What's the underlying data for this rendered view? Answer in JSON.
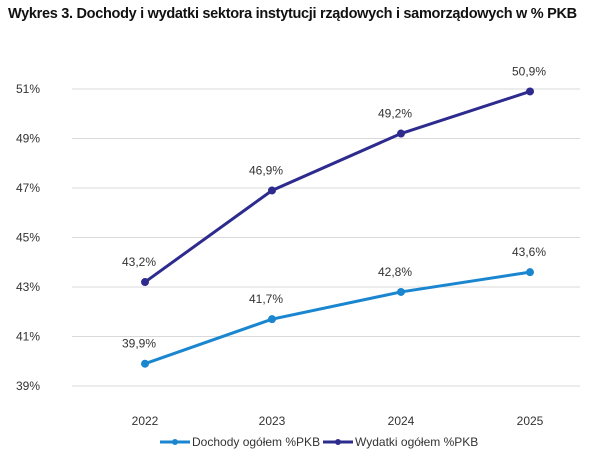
{
  "chart_data": {
    "type": "line",
    "title": "Wykres 3.  Dochody i wydatki sektora instytucji rządowych i samorządowych w % PKB",
    "categories": [
      "2022",
      "2023",
      "2024",
      "2025"
    ],
    "ylim": [
      39,
      51
    ],
    "yticks": [
      "39%",
      "41%",
      "43%",
      "45%",
      "47%",
      "49%",
      "51%"
    ],
    "ytick_values": [
      39,
      41,
      43,
      45,
      47,
      49,
      51
    ],
    "grid": true,
    "legend": "bottom",
    "series": [
      {
        "name": "Dochody ogółem %PKB",
        "color": "#1a86d0",
        "values": [
          39.9,
          41.7,
          42.8,
          43.6
        ],
        "labels": [
          "39,9%",
          "41,7%",
          "42,8%",
          "43,6%"
        ]
      },
      {
        "name": "Wydatki ogółem %PKB",
        "color": "#2e2b8f",
        "values": [
          43.2,
          46.9,
          49.2,
          50.9
        ],
        "labels": [
          "43,2%",
          "46,9%",
          "49,2%",
          "50,9%"
        ]
      }
    ]
  }
}
